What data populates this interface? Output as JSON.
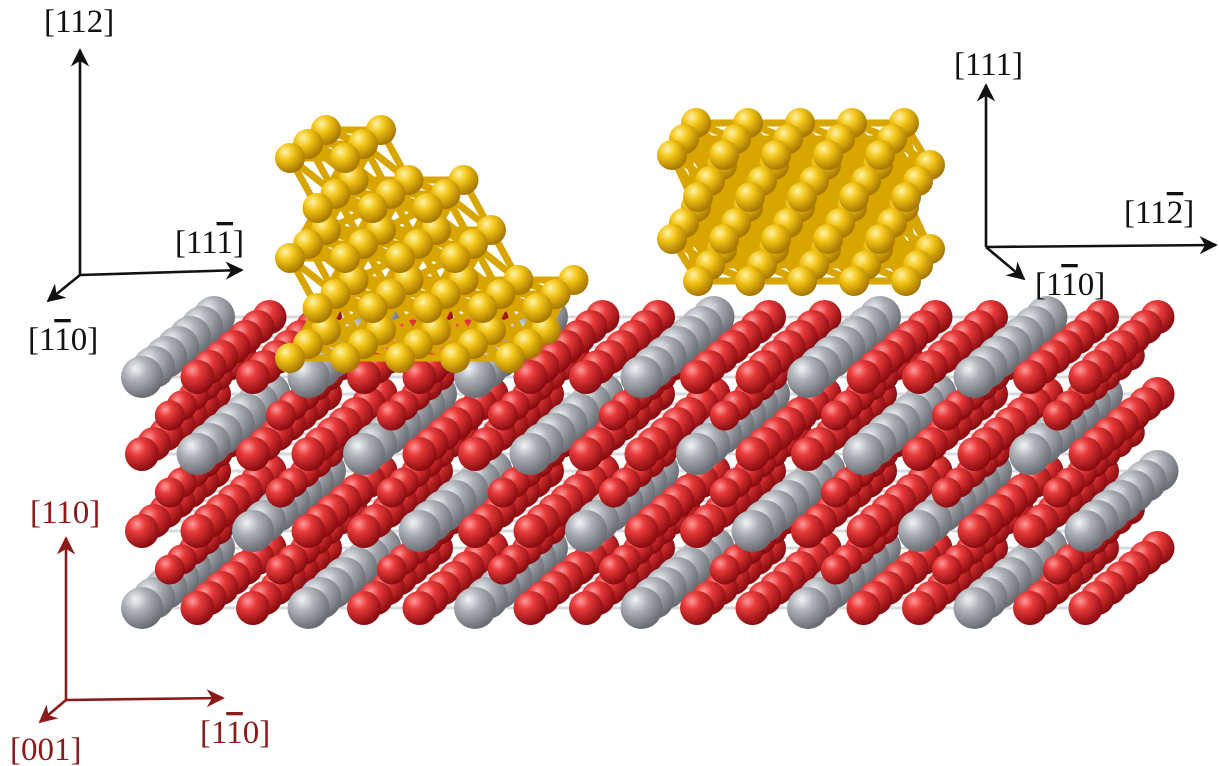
{
  "axes": {
    "left_cluster": {
      "up": {
        "prefix": "[112]",
        "bar_digit": "",
        "suffix": ""
      },
      "right": {
        "prefix": "[11",
        "bar_digit": "1",
        "suffix": "]"
      },
      "out": {
        "prefix": "[1",
        "bar_digit": "1",
        "suffix": "0]"
      }
    },
    "right_cluster": {
      "up": {
        "prefix": "[111]",
        "bar_digit": "",
        "suffix": ""
      },
      "right": {
        "prefix": "[11",
        "bar_digit": "2",
        "suffix": "]"
      },
      "out": {
        "prefix": "[1",
        "bar_digit": "1",
        "suffix": "0]"
      }
    },
    "substrate": {
      "up": {
        "prefix": "[110]",
        "bar_digit": "",
        "suffix": ""
      },
      "right": {
        "prefix": "[1",
        "bar_digit": "1",
        "suffix": "0]"
      },
      "out": {
        "prefix": "[001]",
        "bar_digit": "",
        "suffix": ""
      }
    }
  },
  "colors": {
    "oxygen": "#d8262c",
    "metal_cation": "#a8acb2",
    "gold": "#f0c010",
    "label_black": "#111111",
    "label_red": "#8b1a1a"
  }
}
